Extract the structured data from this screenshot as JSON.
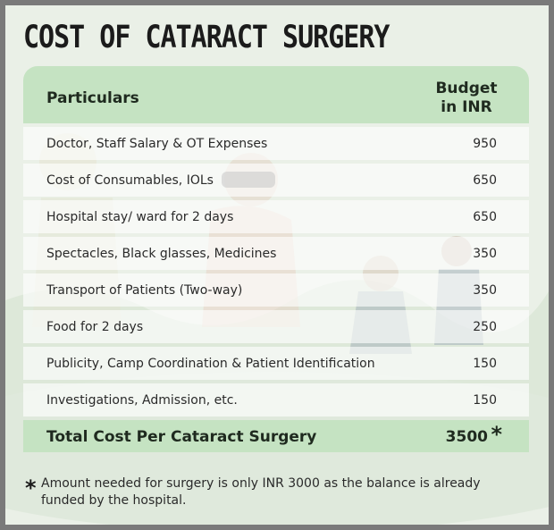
{
  "title": "COST OF CATARACT SURGERY",
  "table": {
    "header_particulars": "Particulars",
    "header_budget_line1": "Budget",
    "header_budget_line2": "in INR",
    "rows": [
      {
        "label": "Doctor, Staff Salary & OT Expenses",
        "value": "950"
      },
      {
        "label": "Cost of Consumables, IOLs",
        "value": "650"
      },
      {
        "label": "Hospital stay/ ward for 2 days",
        "value": "650"
      },
      {
        "label": "Spectacles, Black glasses, Medicines",
        "value": "350"
      },
      {
        "label": "Transport of Patients (Two-way)",
        "value": "350"
      },
      {
        "label": "Food for 2 days",
        "value": "250"
      },
      {
        "label": "Publicity, Camp Coordination & Patient Identification",
        "value": "150"
      },
      {
        "label": "Investigations, Admission, etc.",
        "value": "150"
      }
    ],
    "total_label": "Total Cost Per Cataract Surgery",
    "total_value": "3500",
    "total_mark": "*"
  },
  "footnote": {
    "mark": "*",
    "text": "Amount needed for surgery is only INR 3000 as the balance is already funded by the hospital."
  },
  "colors": {
    "header_green": "#c5e3c2",
    "background": "#e9efe6"
  }
}
